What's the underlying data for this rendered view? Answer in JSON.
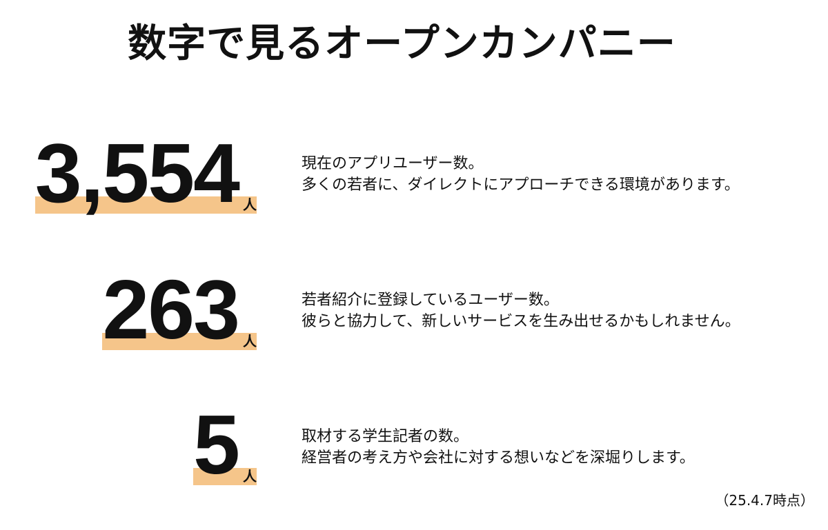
{
  "title": "数字で見るオープンカンパニー",
  "accent_color": "#f5c58a",
  "stats": [
    {
      "value": "3,554",
      "unit": "人",
      "lines": [
        "現在のアプリユーザー数。",
        "多くの若者に、ダイレクトにアプローチできる環境があります。"
      ]
    },
    {
      "value": "263",
      "unit": "人",
      "lines": [
        "若者紹介に登録しているユーザー数。",
        "彼らと協力して、新しいサービスを生み出せるかもしれません。"
      ]
    },
    {
      "value": "5",
      "unit": "人",
      "lines": [
        "取材する学生記者の数。",
        "経営者の考え方や会社に対する想いなどを深堀りします。"
      ]
    }
  ],
  "footnote": "（25.4.7時点）"
}
